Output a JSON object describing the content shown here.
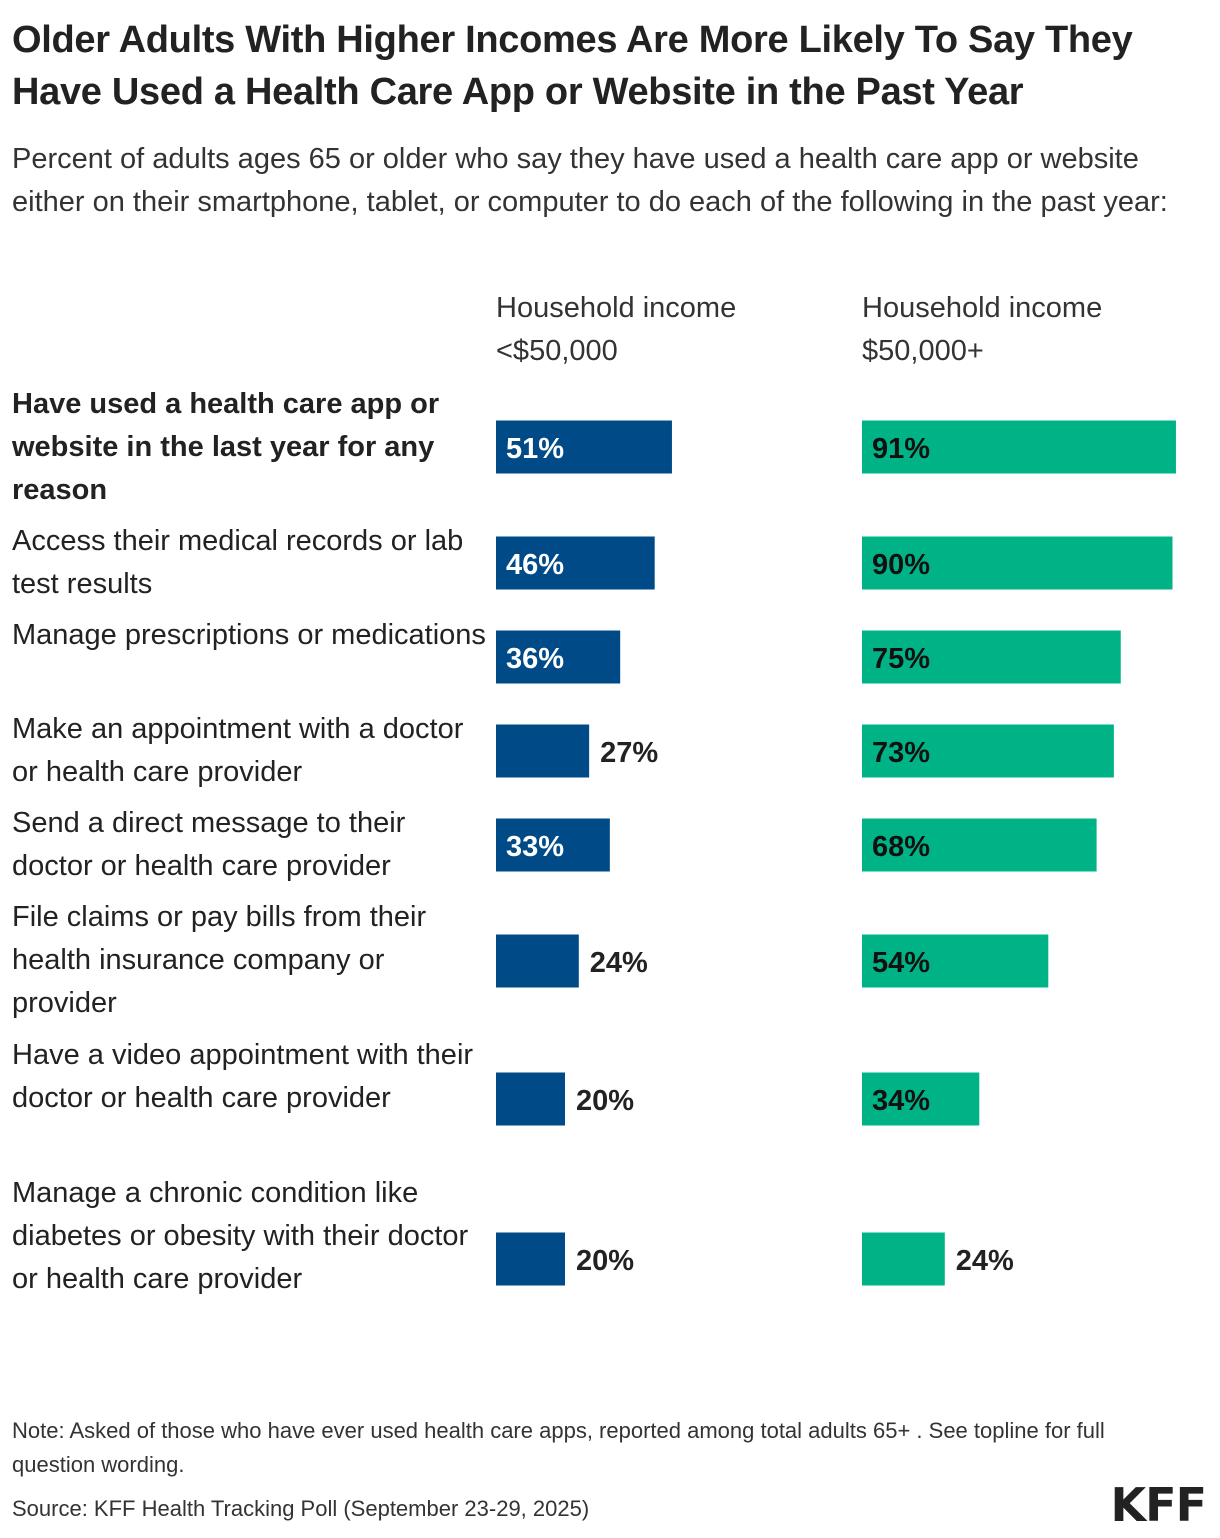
{
  "title": "Older Adults With Higher Incomes Are More Likely To Say They Have Used a Health Care App or Website in the Past Year",
  "subtitle": "Percent of adults ages 65 or older who say they have used a health care app or website either on their smartphone, tablet, or computer to do each of the following in the past year:",
  "note": "Note: Asked of those who have ever used health care apps, reported among total adults 65+ . See topline for full question wording.",
  "source": "Source: KFF Health Tracking Poll (September 23-29, 2025)",
  "logo": "KFF",
  "colors": {
    "low_income": "#004b87",
    "high_income": "#00b386"
  },
  "chart_data": {
    "type": "bar",
    "orientation": "horizontal",
    "categories": [
      "Have used a health care app or website in the last year for any reason",
      "Access their medical records or lab test results",
      "Manage prescriptions or medications",
      "Make an appointment with a doctor or health care provider",
      "Send a direct message to their doctor or health care provider",
      "File claims or pay bills from their health insurance company or provider",
      "Have a video appointment with their doctor or health care provider",
      "Manage a chronic condition like diabetes or obesity with their doctor or health care provider"
    ],
    "series": [
      {
        "name": "Household income <$50,000",
        "values": [
          51,
          46,
          36,
          27,
          33,
          24,
          20,
          20
        ]
      },
      {
        "name": "Household income $50,000+",
        "values": [
          91,
          90,
          75,
          73,
          68,
          54,
          34,
          24
        ]
      }
    ],
    "value_suffix": "%",
    "xlim": [
      0,
      100
    ],
    "grid": false,
    "legend": "none"
  }
}
